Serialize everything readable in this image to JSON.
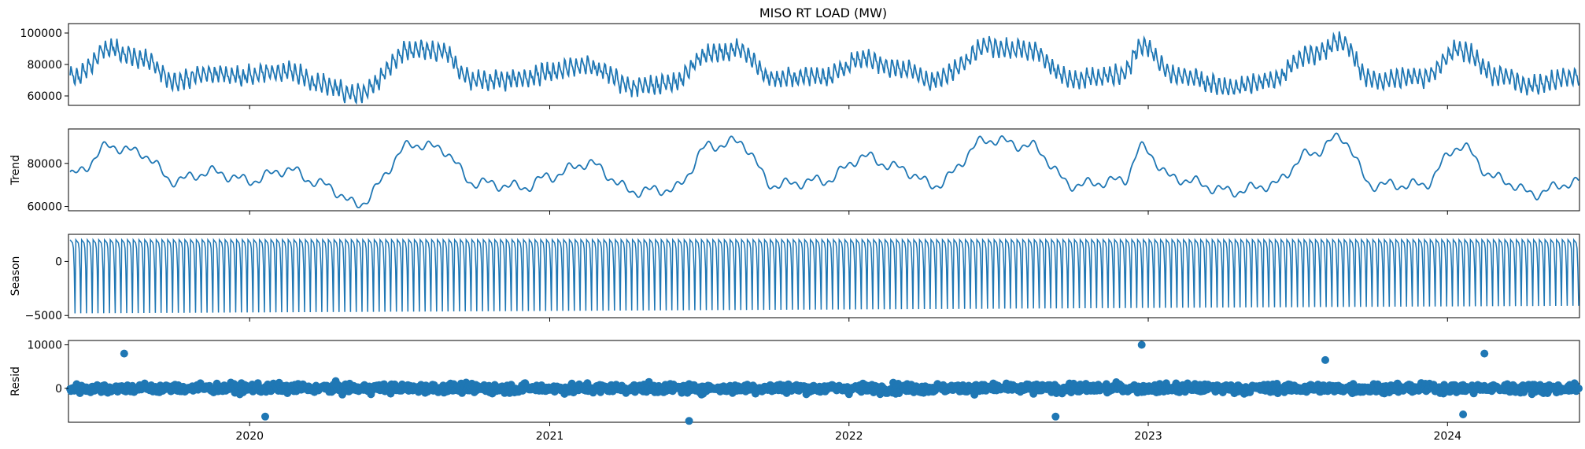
{
  "chart_data": [
    {
      "type": "line",
      "title": "MISO RT LOAD (MW)",
      "ylabel": "",
      "ylim": [
        54000,
        106000
      ],
      "yticks": [
        60000,
        80000,
        100000
      ],
      "yticklabels": [
        "60000",
        "80000",
        "100000"
      ],
      "x_domain": [
        "2019-05-25",
        "2024-06-10"
      ],
      "series": [
        {
          "color": "#1f77b4",
          "x": [
            "2019-06-01",
            "2019-07-15",
            "2019-08-20",
            "2019-10-01",
            "2019-11-15",
            "2020-01-01",
            "2020-02-15",
            "2020-04-01",
            "2020-05-10",
            "2020-07-20",
            "2020-08-20",
            "2020-10-01",
            "2020-12-01",
            "2021-01-01",
            "2021-02-15",
            "2021-04-15",
            "2021-06-01",
            "2021-07-15",
            "2021-08-20",
            "2021-10-01",
            "2021-12-01",
            "2022-01-20",
            "2022-03-01",
            "2022-04-15",
            "2022-06-20",
            "2022-08-10",
            "2022-10-01",
            "2022-12-01",
            "2022-12-24",
            "2023-02-01",
            "2023-04-15",
            "2023-06-01",
            "2023-07-15",
            "2023-08-24",
            "2023-10-01",
            "2023-12-01",
            "2024-01-16",
            "2024-03-01",
            "2024-04-15",
            "2024-06-01"
          ],
          "y": [
            72000,
            90000,
            84000,
            70000,
            74000,
            73000,
            76000,
            67000,
            61000,
            89000,
            88000,
            70000,
            71000,
            75000,
            80000,
            66000,
            69000,
            87000,
            89000,
            71000,
            73000,
            83000,
            78000,
            70000,
            92000,
            89000,
            70000,
            73000,
            93000,
            73000,
            66000,
            70000,
            86000,
            94000,
            70000,
            72000,
            90000,
            73000,
            67000,
            72000
          ]
        }
      ]
    },
    {
      "type": "line",
      "title": "",
      "ylabel": "Trend",
      "ylim": [
        58000,
        96000
      ],
      "yticks": [
        60000,
        80000
      ],
      "yticklabels": [
        "60000",
        "80000"
      ],
      "x_domain": [
        "2019-05-25",
        "2024-06-10"
      ],
      "series": [
        {
          "color": "#1f77b4",
          "x": [
            "2019-06-01",
            "2019-07-15",
            "2019-08-20",
            "2019-10-01",
            "2019-11-15",
            "2020-01-01",
            "2020-02-15",
            "2020-04-01",
            "2020-05-10",
            "2020-07-20",
            "2020-08-20",
            "2020-10-01",
            "2020-12-01",
            "2021-01-01",
            "2021-02-15",
            "2021-04-15",
            "2021-06-01",
            "2021-07-15",
            "2021-08-20",
            "2021-10-01",
            "2021-12-01",
            "2022-01-20",
            "2022-03-01",
            "2022-04-15",
            "2022-06-20",
            "2022-08-10",
            "2022-10-01",
            "2022-12-01",
            "2022-12-24",
            "2023-02-01",
            "2023-04-15",
            "2023-06-01",
            "2023-07-15",
            "2023-08-24",
            "2023-10-01",
            "2023-12-01",
            "2024-01-16",
            "2024-03-01",
            "2024-04-15",
            "2024-06-01"
          ],
          "y": [
            75000,
            88000,
            85000,
            72000,
            76000,
            72000,
            77000,
            70000,
            61000,
            89000,
            87000,
            71000,
            69000,
            74000,
            80000,
            67000,
            68000,
            88000,
            90000,
            70000,
            72000,
            83000,
            78000,
            70000,
            91000,
            88000,
            70000,
            72000,
            87000,
            73000,
            67000,
            70000,
            84000,
            92000,
            70000,
            70000,
            88000,
            73000,
            66000,
            71000
          ]
        }
      ]
    },
    {
      "type": "line",
      "title": "",
      "ylabel": "Season",
      "ylim": [
        -5200,
        2500
      ],
      "yticks": [
        -5000,
        0
      ],
      "yticklabels": [
        "−5000",
        "0"
      ],
      "x_domain": [
        "2019-05-25",
        "2024-06-10"
      ],
      "series": [
        {
          "color": "#1f77b4",
          "description_free": true,
          "period_days": 7,
          "peak": 2000,
          "trough_start": -4800,
          "trough_end": -4100,
          "x_start": "2019-05-27",
          "x_end": "2024-06-09"
        }
      ]
    },
    {
      "type": "scatter",
      "title": "",
      "ylabel": "Resid",
      "ylim": [
        -7800,
        11000
      ],
      "yticks": [
        0,
        10000
      ],
      "yticklabels": [
        "0",
        "10000"
      ],
      "x_domain": [
        "2019-05-25",
        "2024-06-10"
      ],
      "xticks": [
        "2020-01-01",
        "2021-01-01",
        "2022-01-01",
        "2023-01-01",
        "2024-01-01"
      ],
      "xticklabels": [
        "2020",
        "2021",
        "2022",
        "2023",
        "2024"
      ],
      "series": [
        {
          "color": "#1f77b4",
          "x_start": "2019-05-27",
          "x_end": "2024-06-09",
          "typical_spread": 2000,
          "highlights": [
            {
              "x": "2019-08-01",
              "y": 8000
            },
            {
              "x": "2020-01-20",
              "y": -6500
            },
            {
              "x": "2021-06-20",
              "y": -7500
            },
            {
              "x": "2022-12-24",
              "y": 10000
            },
            {
              "x": "2024-02-15",
              "y": 8000
            },
            {
              "x": "2024-01-20",
              "y": -6000
            },
            {
              "x": "2022-09-10",
              "y": -6500
            },
            {
              "x": "2023-08-05",
              "y": 6500
            }
          ]
        }
      ]
    }
  ]
}
